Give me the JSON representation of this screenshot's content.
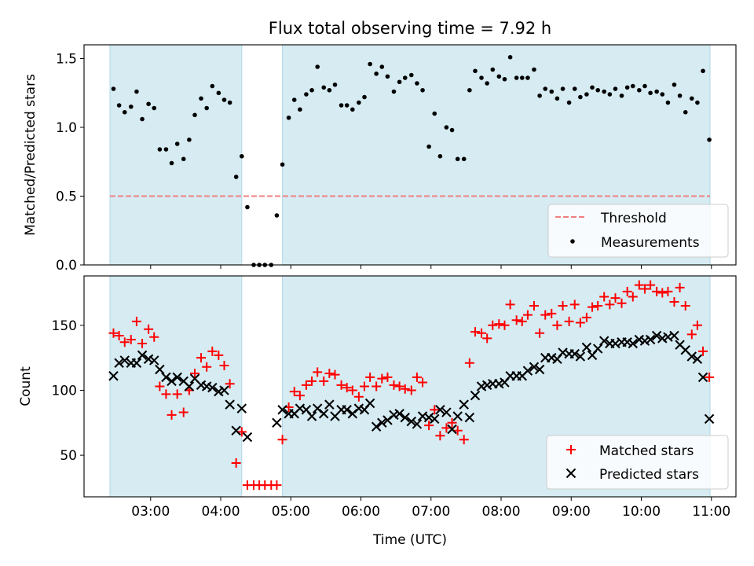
{
  "title": "Flux total observing time = 7.92 h",
  "colors": {
    "shade": "#add8e6",
    "threshold": "#f08080",
    "matched": "#ff0000",
    "predicted": "#000000"
  },
  "chart_data": [
    {
      "type": "scatter",
      "ylabel": "Matched/Predicted stars",
      "ylim": [
        0,
        1.6
      ],
      "yticks": [
        "0.0",
        "0.5",
        "1.0",
        "1.5"
      ],
      "xlim": [
        2.05,
        11.35
      ],
      "threshold": 0.5,
      "threshold_x": [
        2.42,
        10.98
      ],
      "shaded_intervals": [
        [
          2.42,
          4.3
        ],
        [
          4.88,
          10.98
        ]
      ],
      "legend_position": "bottom-right",
      "legend": [
        "Threshold",
        "Measurements"
      ],
      "series": [
        {
          "name": "Measurements",
          "x": [
            2.47,
            2.55,
            2.63,
            2.72,
            2.8,
            2.88,
            2.97,
            3.05,
            3.13,
            3.22,
            3.3,
            3.38,
            3.47,
            3.55,
            3.63,
            3.72,
            3.8,
            3.88,
            3.97,
            4.05,
            4.13,
            4.22,
            4.3,
            4.38,
            4.47,
            4.55,
            4.63,
            4.72,
            4.8,
            4.88,
            4.97,
            5.05,
            5.13,
            5.22,
            5.3,
            5.38,
            5.47,
            5.55,
            5.63,
            5.72,
            5.8,
            5.88,
            5.97,
            6.05,
            6.13,
            6.22,
            6.3,
            6.38,
            6.47,
            6.55,
            6.63,
            6.72,
            6.8,
            6.88,
            6.97,
            7.05,
            7.13,
            7.22,
            7.3,
            7.38,
            7.47,
            7.55,
            7.63,
            7.72,
            7.8,
            7.88,
            7.97,
            8.05,
            8.13,
            8.22,
            8.3,
            8.38,
            8.47,
            8.55,
            8.63,
            8.72,
            8.8,
            8.88,
            8.97,
            9.05,
            9.13,
            9.22,
            9.3,
            9.38,
            9.47,
            9.55,
            9.63,
            9.72,
            9.8,
            9.88,
            9.97,
            10.05,
            10.13,
            10.22,
            10.3,
            10.38,
            10.47,
            10.55,
            10.63,
            10.72,
            10.8,
            10.88,
            10.97
          ],
          "y": [
            1.28,
            1.16,
            1.11,
            1.15,
            1.26,
            1.06,
            1.17,
            1.14,
            0.84,
            0.84,
            0.74,
            0.88,
            0.77,
            0.91,
            1.09,
            1.21,
            1.14,
            1.3,
            1.25,
            1.2,
            1.18,
            0.64,
            0.79,
            0.42,
            0.0,
            0.0,
            0.0,
            0.0,
            0.36,
            0.73,
            1.07,
            1.2,
            1.13,
            1.24,
            1.27,
            1.44,
            1.29,
            1.27,
            1.31,
            1.16,
            1.16,
            1.13,
            1.18,
            1.22,
            1.46,
            1.39,
            1.44,
            1.37,
            1.26,
            1.33,
            1.36,
            1.38,
            1.32,
            1.27,
            0.86,
            1.1,
            0.79,
            1.0,
            0.98,
            0.77,
            0.77,
            1.27,
            1.41,
            1.36,
            1.32,
            1.42,
            1.37,
            1.35,
            1.51,
            1.36,
            1.36,
            1.36,
            1.42,
            1.23,
            1.28,
            1.26,
            1.21,
            1.28,
            1.18,
            1.28,
            1.22,
            1.24,
            1.29,
            1.27,
            1.26,
            1.24,
            1.28,
            1.23,
            1.29,
            1.3,
            1.27,
            1.3,
            1.25,
            1.26,
            1.24,
            1.18,
            1.31,
            1.23,
            1.11,
            1.21,
            1.18,
            1.41,
            0.91
          ]
        }
      ]
    },
    {
      "type": "scatter",
      "xlabel": "Time (UTC)",
      "ylabel": "Count",
      "ylim": [
        18,
        188
      ],
      "yticks": [
        "50",
        "100",
        "150"
      ],
      "xlim": [
        2.05,
        11.35
      ],
      "xticks": [
        "03:00",
        "04:00",
        "05:00",
        "06:00",
        "07:00",
        "08:00",
        "09:00",
        "10:00",
        "11:00"
      ],
      "shaded_intervals": [
        [
          2.42,
          4.3
        ],
        [
          4.88,
          10.98
        ]
      ],
      "legend_position": "bottom-right",
      "legend": [
        "Matched stars",
        "Predicted stars"
      ],
      "series": [
        {
          "name": "Matched stars",
          "x": [
            2.47,
            2.55,
            2.63,
            2.72,
            2.8,
            2.88,
            2.97,
            3.05,
            3.13,
            3.22,
            3.3,
            3.38,
            3.47,
            3.55,
            3.63,
            3.72,
            3.8,
            3.88,
            3.97,
            4.05,
            4.13,
            4.22,
            4.3,
            4.38,
            4.47,
            4.55,
            4.63,
            4.72,
            4.8,
            4.88,
            4.97,
            5.05,
            5.13,
            5.22,
            5.3,
            5.38,
            5.47,
            5.55,
            5.63,
            5.72,
            5.8,
            5.88,
            5.97,
            6.05,
            6.13,
            6.22,
            6.3,
            6.38,
            6.47,
            6.55,
            6.63,
            6.72,
            6.8,
            6.88,
            6.97,
            7.05,
            7.13,
            7.22,
            7.3,
            7.38,
            7.47,
            7.55,
            7.63,
            7.72,
            7.8,
            7.88,
            7.97,
            8.05,
            8.13,
            8.22,
            8.3,
            8.38,
            8.47,
            8.55,
            8.63,
            8.72,
            8.8,
            8.88,
            8.97,
            9.05,
            9.13,
            9.22,
            9.3,
            9.38,
            9.47,
            9.55,
            9.63,
            9.72,
            9.8,
            9.88,
            9.97,
            10.05,
            10.13,
            10.22,
            10.3,
            10.38,
            10.47,
            10.55,
            10.63,
            10.72,
            10.8,
            10.88,
            10.97
          ],
          "y": [
            144,
            142,
            137,
            139,
            153,
            136,
            147,
            141,
            103,
            97,
            81,
            97,
            83,
            100,
            113,
            125,
            118,
            130,
            127,
            119,
            105,
            44,
            68,
            27,
            27,
            27,
            27,
            27,
            27,
            62,
            87,
            99,
            96,
            104,
            107,
            114,
            107,
            113,
            112,
            104,
            102,
            100,
            95,
            103,
            110,
            103,
            109,
            110,
            104,
            103,
            101,
            100,
            110,
            106,
            73,
            85,
            65,
            71,
            75,
            69,
            62,
            121,
            145,
            144,
            140,
            150,
            151,
            150,
            166,
            154,
            153,
            158,
            165,
            144,
            158,
            159,
            150,
            165,
            153,
            166,
            152,
            156,
            164,
            165,
            172,
            166,
            171,
            167,
            176,
            172,
            181,
            178,
            181,
            176,
            175,
            176,
            168,
            179,
            165,
            143,
            150,
            130,
            110
          ]
        },
        {
          "name": "Predicted stars",
          "x": [
            2.47,
            2.55,
            2.63,
            2.72,
            2.8,
            2.88,
            2.97,
            3.05,
            3.13,
            3.22,
            3.3,
            3.38,
            3.47,
            3.55,
            3.63,
            3.72,
            3.8,
            3.88,
            3.97,
            4.05,
            4.13,
            4.22,
            4.3,
            4.38,
            4.8,
            4.88,
            4.97,
            5.05,
            5.13,
            5.22,
            5.3,
            5.38,
            5.47,
            5.55,
            5.63,
            5.72,
            5.8,
            5.88,
            5.97,
            6.05,
            6.13,
            6.22,
            6.3,
            6.38,
            6.47,
            6.55,
            6.63,
            6.72,
            6.8,
            6.88,
            6.97,
            7.05,
            7.13,
            7.22,
            7.3,
            7.38,
            7.47,
            7.55,
            7.63,
            7.72,
            7.8,
            7.88,
            7.97,
            8.05,
            8.13,
            8.22,
            8.3,
            8.38,
            8.47,
            8.55,
            8.63,
            8.72,
            8.8,
            8.88,
            8.97,
            9.05,
            9.13,
            9.22,
            9.3,
            9.38,
            9.47,
            9.55,
            9.63,
            9.72,
            9.8,
            9.88,
            9.97,
            10.05,
            10.13,
            10.22,
            10.3,
            10.38,
            10.47,
            10.55,
            10.63,
            10.72,
            10.8,
            10.88,
            10.97
          ],
          "y": [
            111,
            121,
            123,
            121,
            121,
            127,
            124,
            123,
            116,
            110,
            107,
            110,
            107,
            103,
            109,
            104,
            103,
            102,
            99,
            100,
            89,
            69,
            86,
            64,
            75,
            85,
            82,
            82,
            86,
            85,
            80,
            86,
            82,
            89,
            80,
            85,
            85,
            82,
            86,
            85,
            90,
            72,
            75,
            77,
            81,
            82,
            79,
            76,
            74,
            80,
            79,
            78,
            85,
            83,
            70,
            80,
            89,
            79,
            96,
            103,
            104,
            105,
            105,
            106,
            111,
            111,
            111,
            115,
            118,
            116,
            125,
            125,
            124,
            129,
            128,
            128,
            126,
            133,
            127,
            132,
            138,
            136,
            136,
            137,
            137,
            136,
            139,
            138,
            139,
            142,
            140,
            141,
            142,
            135,
            131,
            126,
            124,
            110,
            78
          ]
        }
      ]
    }
  ]
}
